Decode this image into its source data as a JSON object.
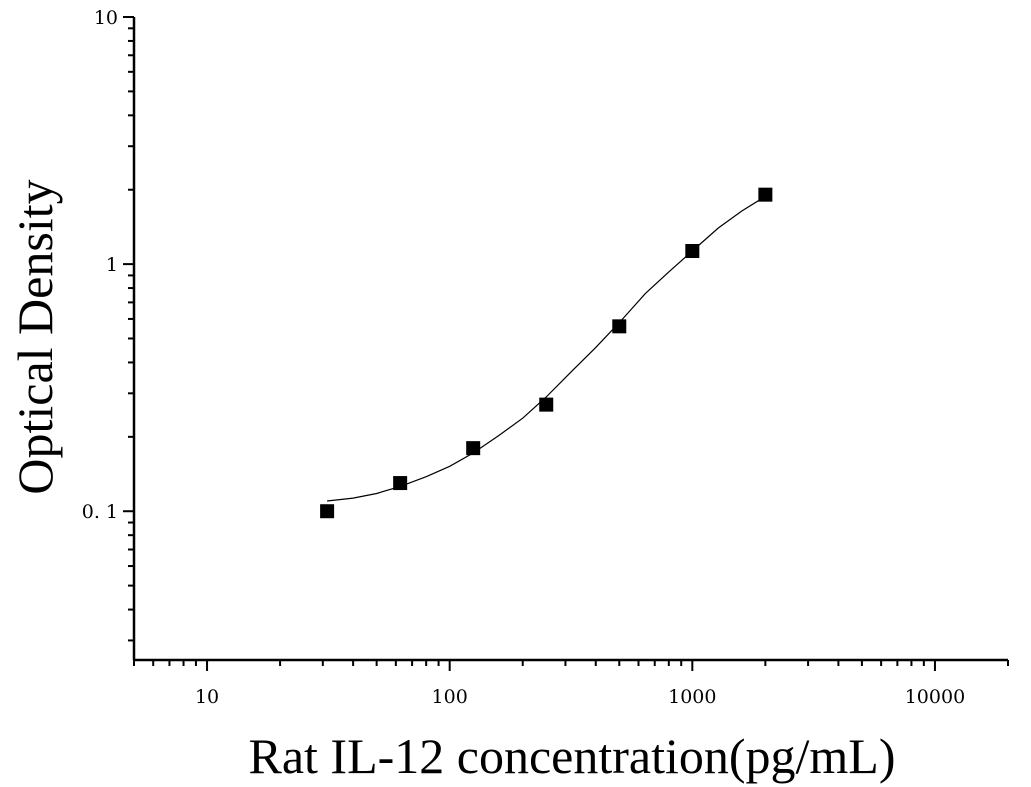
{
  "chart_data": {
    "type": "scatter",
    "xlabel": "Rat IL-12 concentration(pg/mL)",
    "ylabel": "Optical Density",
    "x_scale": "log",
    "y_scale": "log",
    "xlim": [
      5,
      20000
    ],
    "ylim": [
      0.025,
      10
    ],
    "x_ticks": [
      {
        "value": 10,
        "label": "10"
      },
      {
        "value": 100,
        "label": "100"
      },
      {
        "value": 1000,
        "label": "1000"
      },
      {
        "value": 10000,
        "label": "10000"
      }
    ],
    "y_ticks": [
      {
        "value": 0.1,
        "label": "0. 1"
      },
      {
        "value": 1,
        "label": "1"
      },
      {
        "value": 10,
        "label": "10"
      }
    ],
    "points": [
      {
        "x": 31.25,
        "y": 0.1
      },
      {
        "x": 62.5,
        "y": 0.13
      },
      {
        "x": 125,
        "y": 0.18
      },
      {
        "x": 250,
        "y": 0.27
      },
      {
        "x": 500,
        "y": 0.56
      },
      {
        "x": 1000,
        "y": 1.13
      },
      {
        "x": 2000,
        "y": 1.91
      }
    ],
    "fit_curve": {
      "x": [
        31.25,
        40,
        50,
        62.5,
        80,
        100,
        125,
        160,
        200,
        250,
        320,
        400,
        500,
        640,
        800,
        1000,
        1280,
        1600,
        2000
      ],
      "y": [
        0.11,
        0.113,
        0.118,
        0.126,
        0.138,
        0.152,
        0.172,
        0.203,
        0.238,
        0.29,
        0.37,
        0.46,
        0.58,
        0.76,
        0.93,
        1.13,
        1.4,
        1.64,
        1.88
      ]
    },
    "grid": false,
    "legend": "none",
    "colors": {
      "marker": "#000000",
      "line": "#000000",
      "axis": "#000000"
    }
  }
}
